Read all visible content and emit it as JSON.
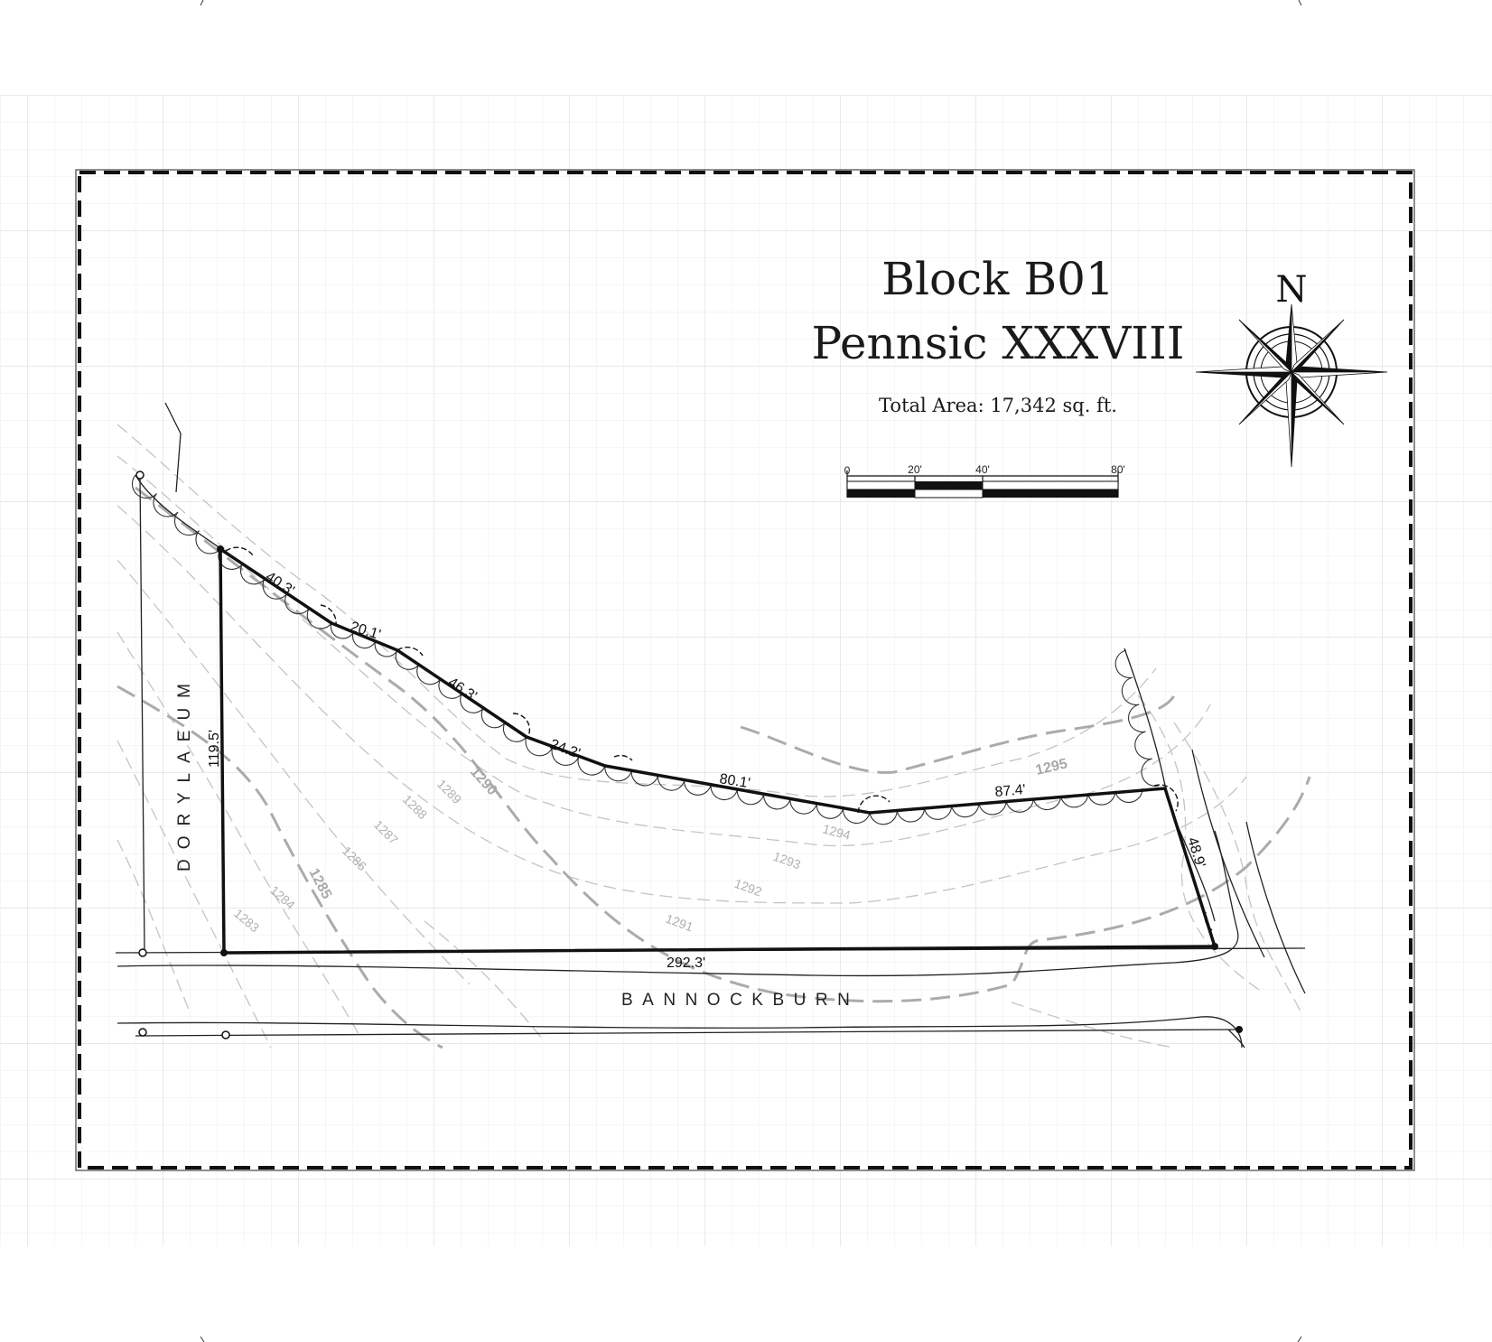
{
  "title": {
    "line1": "Block B01",
    "line2": "Pennsic XXXVIII",
    "area": "Total Area: 17,342 sq. ft."
  },
  "compass": {
    "north_label": "N",
    "icon": "compass-rose-icon"
  },
  "scale_bar": {
    "labels": [
      "0",
      "20'",
      "40'",
      "80'"
    ]
  },
  "streets": {
    "west": "DORYLAEUM",
    "south": "BANNOCKBURN"
  },
  "boundary_dimensions": {
    "seg1": "40.3'",
    "seg2": "20.1'",
    "seg3": "46.3'",
    "seg4": "24.2'",
    "seg5": "80.1'",
    "seg6": "87.4'",
    "seg7": "48.9'",
    "seg8": "292.3'",
    "seg9": "119.5'"
  },
  "contours": {
    "minor": [
      "1283",
      "1284",
      "1286",
      "1287",
      "1288",
      "1289",
      "1291",
      "1292",
      "1293",
      "1294"
    ],
    "major": [
      "1285",
      "1290",
      "1295"
    ]
  },
  "colors": {
    "boundary": "#111111",
    "contour_minor": "#c4c4c4",
    "contour_major": "#ababab",
    "grid": "#e6e6e6"
  }
}
